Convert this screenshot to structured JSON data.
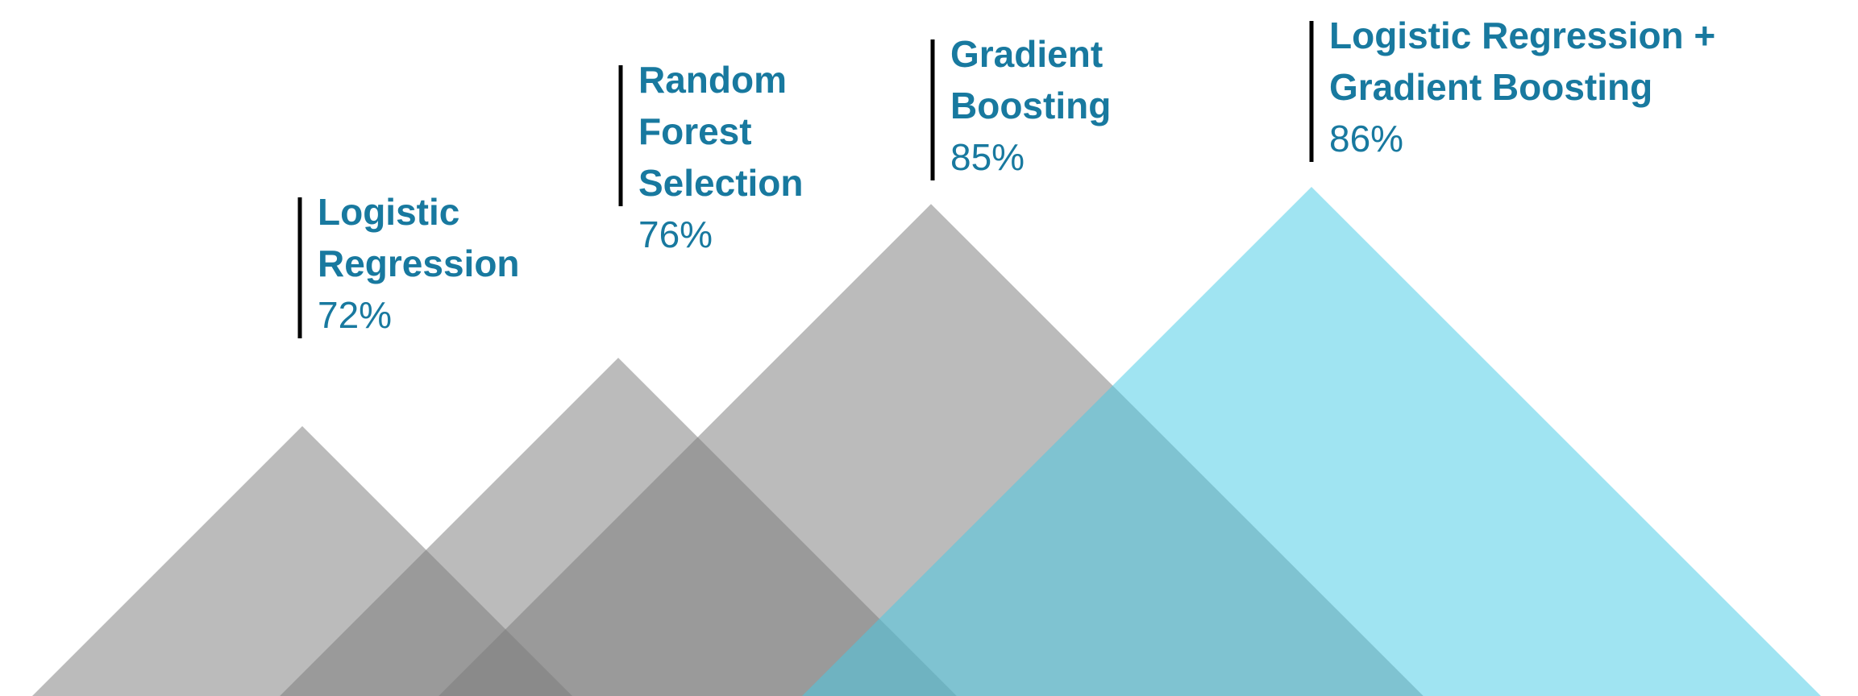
{
  "chart_data": {
    "type": "triangle",
    "categories": [
      [
        "Logistic",
        "Regression"
      ],
      [
        "Random",
        "Forest",
        "Selection"
      ],
      [
        "Gradient",
        "Boosting"
      ],
      [
        "Logistic Regression +",
        "Gradient Boosting"
      ]
    ],
    "values": [
      72,
      76,
      85,
      86
    ],
    "value_labels": [
      "72%",
      "76%",
      "85%",
      "86%"
    ],
    "colors": [
      "#7a7a7a",
      "#7a7a7a",
      "#7a7a7a",
      "#46cbe6"
    ]
  }
}
